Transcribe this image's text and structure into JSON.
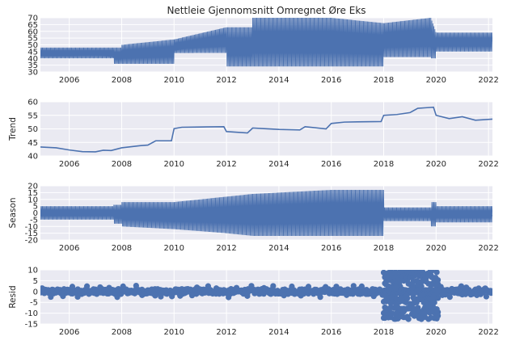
{
  "chart_data": [
    {
      "type": "line",
      "title": "Nettleie Gjennomsnitt Omregnet Øre Eks",
      "ylabel": "",
      "xlim": [
        2004.9,
        2022.15
      ],
      "ylim": [
        30,
        70
      ],
      "yticks": [
        30,
        35,
        40,
        45,
        50,
        55,
        60,
        65,
        70
      ],
      "xticks": [
        2006,
        2008,
        2010,
        2012,
        2014,
        2016,
        2018,
        2020,
        2022
      ],
      "grid": true,
      "series": [
        {
          "style": "band",
          "x": [
            2004.9,
            2007.7,
            2007.7,
            2008.0,
            2008.0,
            2010.0,
            2010.0,
            2012.0,
            2012.0,
            2013.0,
            2013.0,
            2016.0,
            2016.0,
            2018.0,
            2018.0,
            2019.8,
            2019.8,
            2020.0,
            2020.0,
            2022.15
          ],
          "low": [
            40,
            40,
            36,
            36,
            36,
            36,
            44,
            44,
            34,
            34,
            34,
            34,
            34,
            34,
            41,
            41,
            40,
            40,
            45,
            45
          ],
          "high": [
            48,
            48,
            48,
            48,
            50,
            54,
            54,
            63,
            63,
            63,
            70,
            70,
            70,
            66,
            66,
            70,
            70,
            59,
            59,
            59
          ]
        },
        {
          "style": "line",
          "x": [
            2004.9,
            2006.0,
            2007.0,
            2007.8,
            2008.0,
            2009.0,
            2010.0,
            2010.5,
            2012.0,
            2013.0,
            2015.0,
            2016.0,
            2017.0,
            2018.0,
            2019.0,
            2019.6,
            2020.0,
            2021.0,
            2022.15
          ],
          "values": [
            42,
            42,
            43,
            41,
            43,
            44,
            46,
            48,
            49,
            50,
            50,
            51,
            52,
            52,
            52,
            55,
            54,
            53,
            53
          ]
        }
      ]
    },
    {
      "type": "line",
      "ylabel": "Trend",
      "xlim": [
        2004.9,
        2022.15
      ],
      "ylim": [
        40,
        60
      ],
      "yticks": [
        40,
        45,
        50,
        55,
        60
      ],
      "xticks": [
        2006,
        2008,
        2010,
        2012,
        2014,
        2016,
        2018,
        2020,
        2022
      ],
      "grid": true,
      "series": [
        {
          "style": "line",
          "x": [
            2004.9,
            2005.5,
            2006.0,
            2006.5,
            2007.0,
            2007.3,
            2007.6,
            2008.0,
            2008.7,
            2009.0,
            2009.3,
            2009.9,
            2010.0,
            2010.3,
            2011.0,
            2011.9,
            2012.0,
            2012.8,
            2013.0,
            2014.0,
            2014.8,
            2015.0,
            2015.8,
            2016.0,
            2016.5,
            2017.0,
            2017.9,
            2018.0,
            2018.5,
            2019.0,
            2019.3,
            2019.6,
            2019.9,
            2020.0,
            2020.5,
            2021.0,
            2021.5,
            2022.15
          ],
          "values": [
            43.3,
            43.0,
            42.2,
            41.6,
            41.5,
            42.1,
            42.0,
            43.0,
            43.8,
            44.0,
            45.6,
            45.6,
            50.1,
            50.6,
            50.7,
            50.8,
            49.0,
            48.5,
            50.3,
            49.8,
            49.6,
            50.8,
            50.0,
            52.0,
            52.5,
            52.6,
            52.7,
            55.0,
            55.3,
            56.0,
            57.6,
            57.8,
            58.0,
            55.0,
            53.8,
            54.5,
            53.2,
            53.6
          ]
        }
      ]
    },
    {
      "type": "line",
      "ylabel": "Season",
      "xlim": [
        2004.9,
        2022.15
      ],
      "ylim": [
        -20,
        20
      ],
      "yticks": [
        -20,
        -15,
        -10,
        -5,
        0,
        5,
        10,
        15,
        20
      ],
      "xticks": [
        2006,
        2008,
        2010,
        2012,
        2014,
        2016,
        2018,
        2020,
        2022
      ],
      "grid": true,
      "series": [
        {
          "style": "band",
          "x": [
            2004.9,
            2007.7,
            2007.7,
            2008.0,
            2008.0,
            2010.0,
            2010.0,
            2012.0,
            2012.0,
            2013.0,
            2013.0,
            2016.0,
            2016.0,
            2018.0,
            2018.0,
            2019.8,
            2019.8,
            2020.0,
            2020.0,
            2022.15
          ],
          "low": [
            -5,
            -5,
            -8,
            -8,
            -10,
            -12,
            -12,
            -15,
            -15,
            -17,
            -17,
            -17,
            -17,
            -17,
            -6,
            -6,
            -10,
            -10,
            -7,
            -7
          ],
          "high": [
            5,
            5,
            6,
            6,
            8,
            8,
            8,
            12,
            12,
            14,
            14,
            17,
            17,
            17,
            4,
            4,
            8,
            8,
            5,
            5
          ]
        },
        {
          "style": "line",
          "x": [
            2004.9,
            2007.0,
            2008.0,
            2010.0,
            2012.0,
            2016.0,
            2018.0,
            2022.15
          ],
          "values": [
            -1,
            -1,
            2,
            1,
            -2,
            -3,
            -2,
            -2
          ]
        }
      ]
    },
    {
      "type": "scatter",
      "ylabel": "Resid",
      "xlim": [
        2004.9,
        2022.15
      ],
      "ylim": [
        -15,
        10
      ],
      "yticks": [
        -15,
        -10,
        -5,
        0,
        5,
        10
      ],
      "xticks": [
        2006,
        2008,
        2010,
        2012,
        2014,
        2016,
        2018,
        2020,
        2022
      ],
      "grid": true,
      "series": [
        {
          "style": "points-flat",
          "x_range": [
            2004.9,
            2018.0
          ],
          "amplitude": 1.2
        },
        {
          "style": "points-cluster",
          "x_range": [
            2018.0,
            2020.1
          ],
          "levels": [
            -12,
            -10,
            -8,
            -5,
            -3,
            0,
            3,
            5,
            7,
            9
          ]
        },
        {
          "style": "points-flat",
          "x_range": [
            2020.1,
            2022.15
          ],
          "amplitude": 1.5
        },
        {
          "style": "points-flat",
          "x_range": [
            2018.0,
            2020.1
          ],
          "amplitude": 1.0
        }
      ]
    }
  ],
  "colors": {
    "line": "#4c72b0",
    "axes_bg": "#eaeaf2",
    "grid": "#ffffff",
    "text": "#262626"
  }
}
